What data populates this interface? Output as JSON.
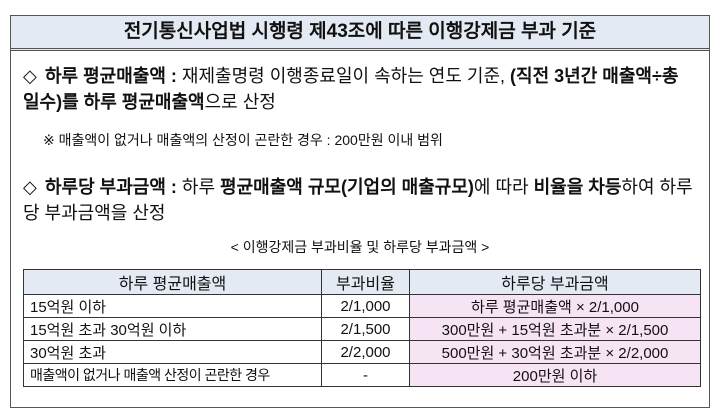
{
  "title": "전기통신사업법 시행령 제43조에 따른 이행강제금 부과 기준",
  "section1": {
    "bullet": "◇",
    "label": "하루 평균매출액 :",
    "text1": " 재제출명령 이행종료일이 속하는 연도 기준, ",
    "bold2": "(직전 3년간 매출액÷총 일수)를 하루 평균매출액",
    "text2": "으로 산정"
  },
  "note": "※ 매출액이 없거나 매출액의 산정이 곤란한 경우 : 200만원 이내 범위",
  "section2": {
    "bullet": "◇",
    "label": "하루당 부과금액 :",
    "text1": " 하루 ",
    "bold2": "평균매출액 규모(기업의 매출규모)",
    "text2": "에 따라 ",
    "bold3": "비율을 차등",
    "text3": "하여 하루당 부과금액을 산정"
  },
  "caption": "< 이행강제금 부과비율 및 하루당 부과금액 >",
  "table": {
    "headers": [
      "하루 평균매출액",
      "부과비율",
      "하루당 부과금액"
    ],
    "rows": [
      [
        "15억원 이하",
        "2/1,000",
        "하루 평균매출액 × 2/1,000"
      ],
      [
        "15억원 초과 30억원 이하",
        "2/1,500",
        "300만원 + 15억원 초과분 × 2/1,500"
      ],
      [
        "30억원 초과",
        "2/2,000",
        "500만원 + 30억원 초과분 × 2/2,000"
      ],
      [
        "매출액이 없거나 매출액 산정이 곤란한 경우",
        "-",
        "200만원 이하"
      ]
    ]
  },
  "colors": {
    "header_fill": "#e4eaf3",
    "amount_fill": "#f6e3f4"
  }
}
